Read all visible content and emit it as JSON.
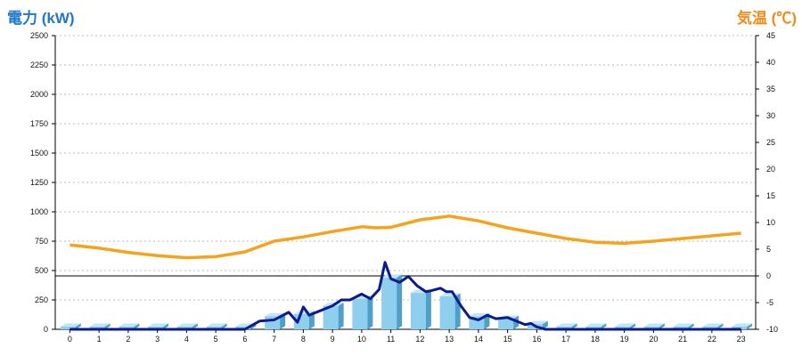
{
  "chart_data": {
    "type": "bar",
    "left_axis_title": "電力 (kW)",
    "right_axis_title": "気温 (℃)",
    "colors": {
      "bar_face": "#8ecfee",
      "bar_side": "#4f9fc8",
      "bar_top": "#c3e6f7",
      "power_line": "#0a1a8f",
      "temperature_line": "#f5a31a",
      "left_title": "#1f78c8",
      "right_title": "#f08c1e",
      "grid": "#bbbbbb"
    },
    "grid": true,
    "legend": "none",
    "x_categories": [
      "0",
      "1",
      "2",
      "3",
      "4",
      "5",
      "6",
      "7",
      "8",
      "9",
      "10",
      "11",
      "12",
      "13",
      "14",
      "15",
      "16",
      "17",
      "18",
      "19",
      "20",
      "21",
      "22",
      "23"
    ],
    "left_axis": {
      "min": 0,
      "max": 2500,
      "ticks": [
        "2500",
        "2250",
        "2000",
        "1750",
        "1500",
        "1250",
        "1000",
        "750",
        "500",
        "250",
        "0"
      ]
    },
    "right_axis": {
      "min": -10,
      "max": 45,
      "ticks": [
        "45",
        "40",
        "35",
        "30",
        "25",
        "20",
        "15",
        "10",
        "5",
        "0",
        "-5",
        "-10"
      ]
    },
    "hourly_power_bars": [
      0,
      0,
      0,
      0,
      0,
      0,
      10,
      110,
      130,
      200,
      260,
      440,
      310,
      280,
      110,
      90,
      45,
      0,
      0,
      0,
      0,
      0,
      0,
      0
    ],
    "power_line": {
      "x": [
        0,
        1,
        2,
        3,
        4,
        5,
        6,
        6.5,
        7,
        7.5,
        7.8,
        8,
        8.2,
        8.5,
        9,
        9.3,
        9.6,
        10,
        10.3,
        10.6,
        10.8,
        11,
        11.3,
        11.6,
        11.9,
        12.2,
        12.4,
        12.7,
        12.9,
        13.1,
        13.4,
        13.7,
        14,
        14.3,
        14.6,
        15,
        15.3,
        15.6,
        15.8,
        16,
        16.3,
        17,
        18,
        19,
        20,
        21,
        22,
        23
      ],
      "y": [
        0,
        0,
        0,
        0,
        0,
        0,
        0,
        70,
        80,
        145,
        60,
        190,
        120,
        150,
        200,
        250,
        250,
        300,
        260,
        340,
        570,
        430,
        400,
        450,
        370,
        320,
        330,
        350,
        320,
        320,
        200,
        100,
        80,
        120,
        90,
        100,
        70,
        40,
        50,
        20,
        0,
        0,
        0,
        0,
        0,
        0,
        0,
        0
      ]
    },
    "temperature_line": {
      "x": [
        0,
        1,
        2,
        3,
        4,
        5,
        6,
        7,
        8,
        9,
        10,
        10.5,
        11,
        12,
        13,
        14,
        15,
        16,
        17,
        18,
        19,
        20,
        21,
        22,
        23
      ],
      "y": [
        5.8,
        5.2,
        4.4,
        3.8,
        3.4,
        3.6,
        4.5,
        6.5,
        7.3,
        8.3,
        9.2,
        9.0,
        9.1,
        10.5,
        11.2,
        10.3,
        9.0,
        8.0,
        7.0,
        6.3,
        6.1,
        6.5,
        7.0,
        7.5,
        8.0
      ]
    },
    "reference_line_value": 0
  }
}
